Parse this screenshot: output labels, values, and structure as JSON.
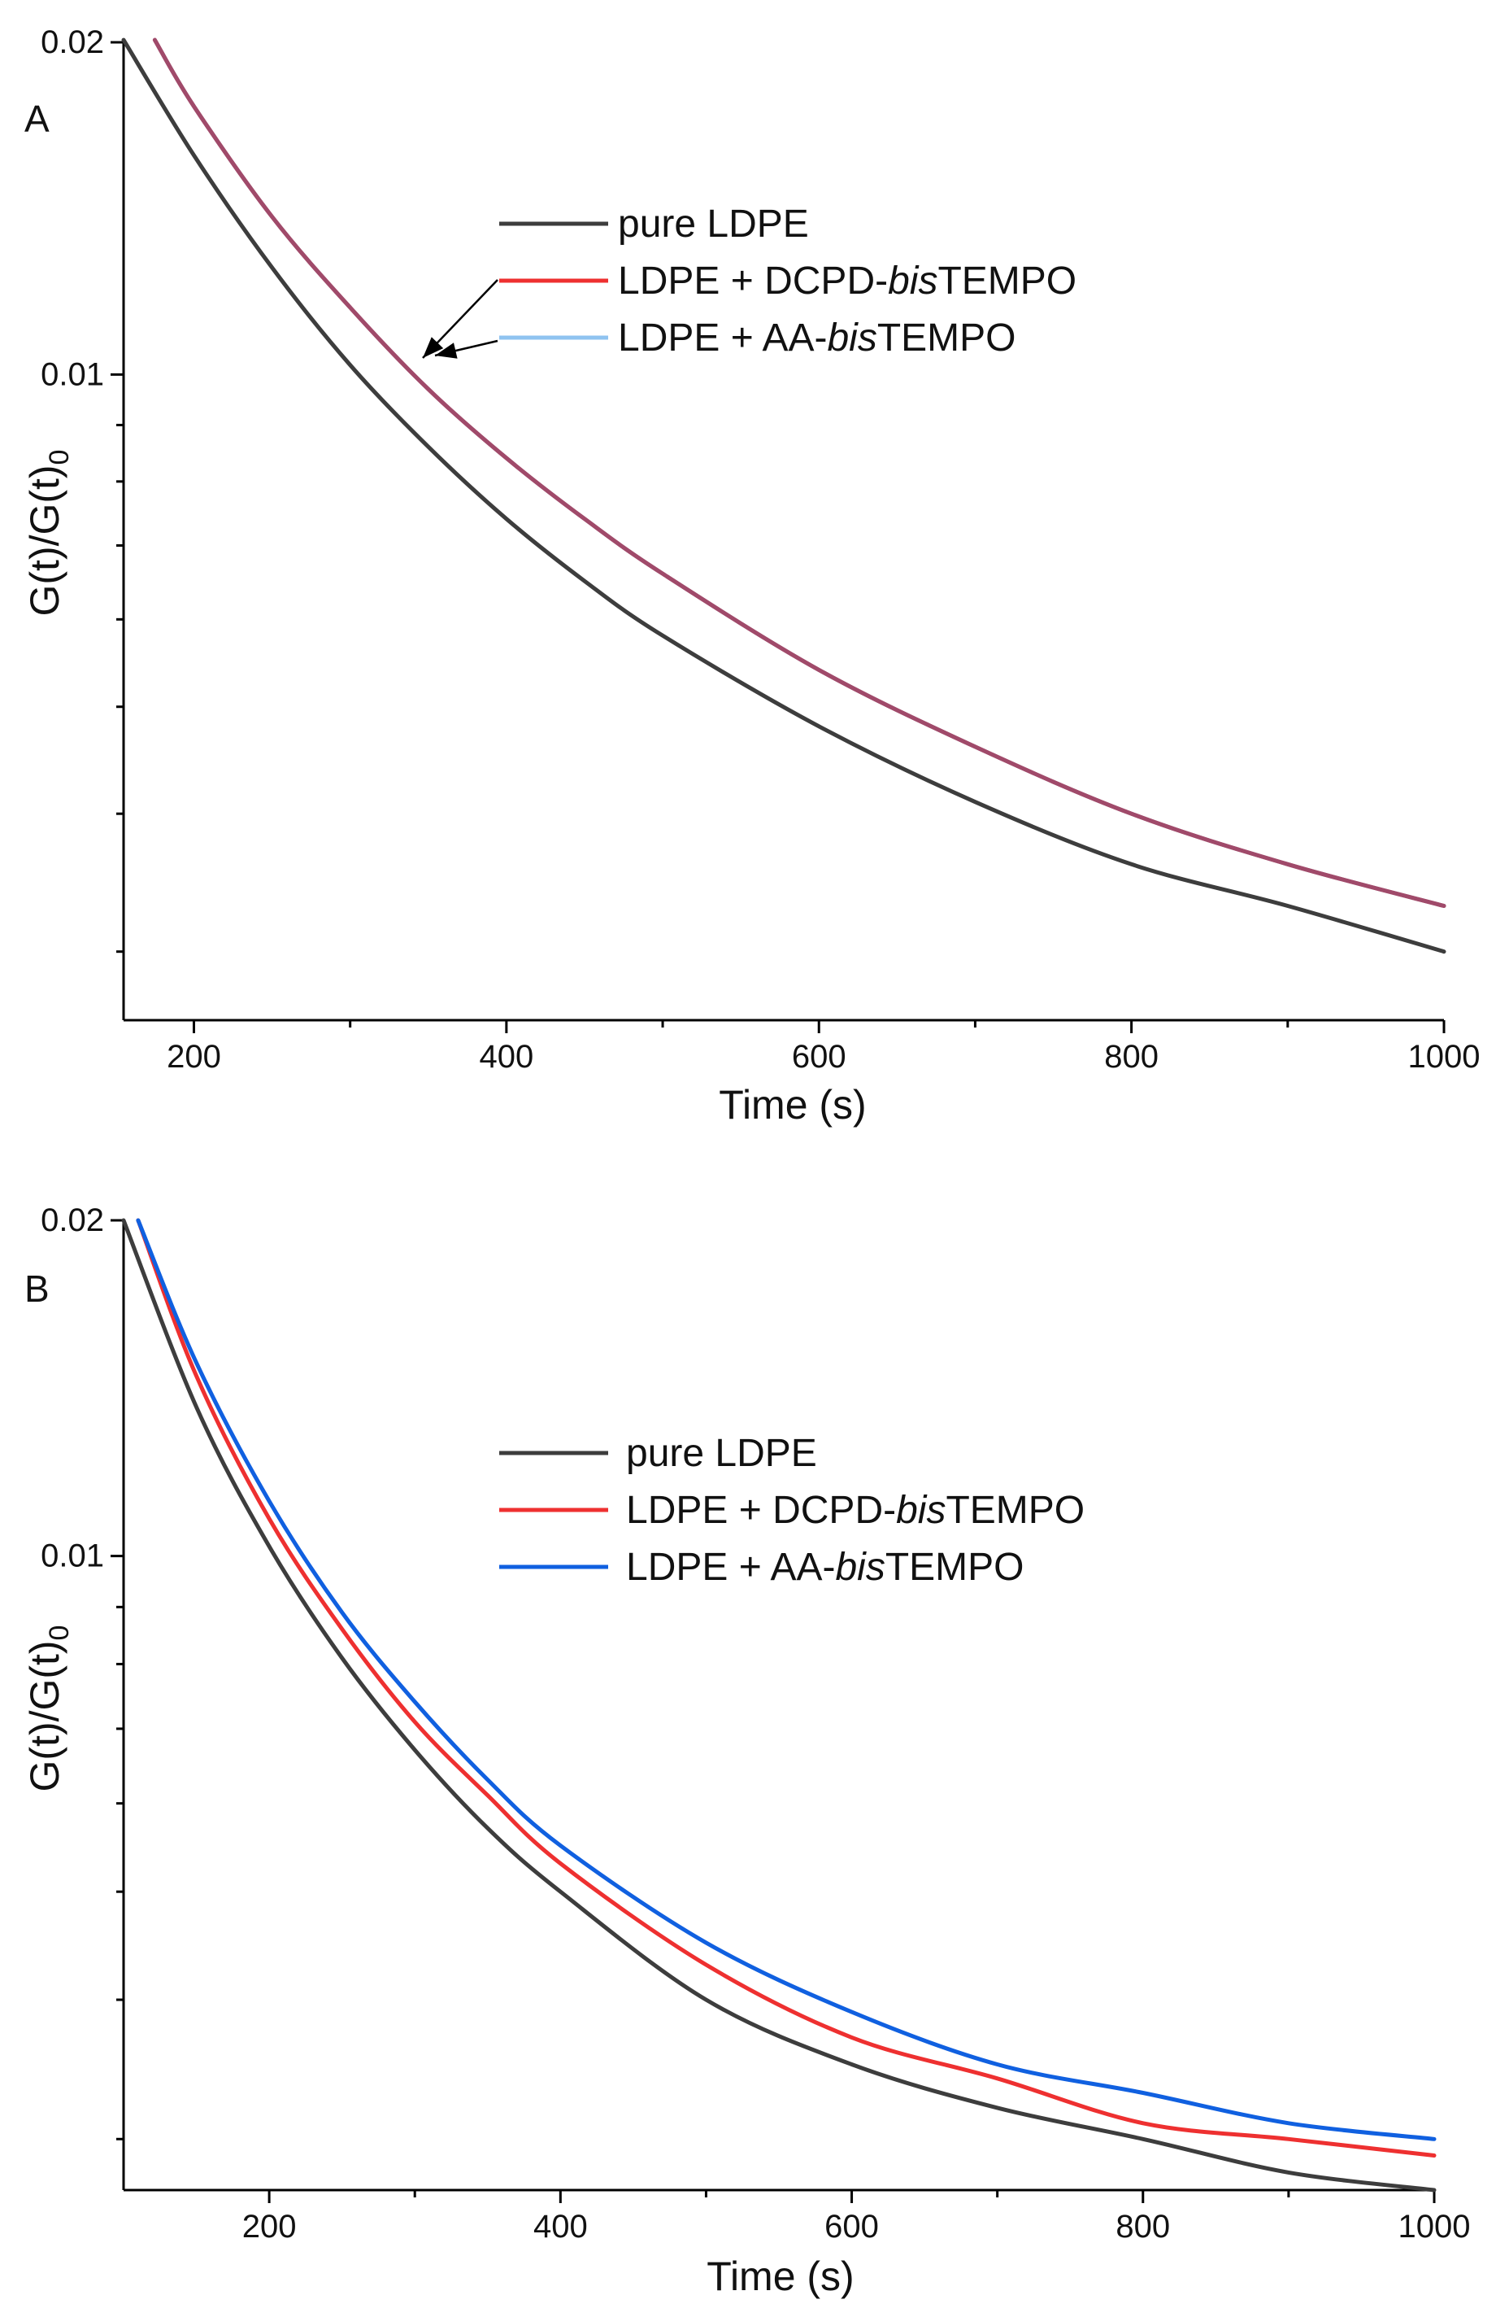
{
  "colors": {
    "pure_ldpe": "#3d3d3d",
    "dcpd": "#ee3030",
    "aa": "#1060e0",
    "aa_light": "#8fc3f0",
    "overlap": "#a04a6a"
  },
  "chart_data": [
    {
      "type": "line",
      "panel_label": "A",
      "xlabel": "Time (s)",
      "ylabel_main": "G(t)/G(t)",
      "ylabel_sub": "0",
      "xlim": [
        155,
        1000
      ],
      "ylim": [
        0.0026,
        0.02
      ],
      "y_scale": "log",
      "x_ticks": [
        200,
        400,
        600,
        800,
        1000
      ],
      "x_tick_labels": [
        "200",
        "400",
        "600",
        "800",
        "1000"
      ],
      "x_minor_ticks": [
        300,
        500,
        700,
        900
      ],
      "y_ticks": [
        0.01,
        0.02
      ],
      "y_tick_labels": [
        "0.01",
        "0.02"
      ],
      "y_minor_ticks": [
        0.003,
        0.004,
        0.005,
        0.006,
        0.007,
        0.008,
        0.009
      ],
      "legend_position": "upper-middle",
      "legend": [
        {
          "label": "pure LDPE",
          "color": "#3d3d3d"
        },
        {
          "label_prefix": "LDPE + DCPD-",
          "label_italic": "bis",
          "label_suffix": "TEMPO",
          "color": "#ee3030"
        },
        {
          "label_prefix": "LDPE + AA-",
          "label_italic": "bis",
          "label_suffix": "TEMPO",
          "color": "#8fc3f0"
        }
      ],
      "annotation": "arrows point from DCPD-bisTEMPO and AA-bisTEMPO legend entries to the overlapping curves",
      "series": [
        {
          "name": "pure LDPE",
          "color": "#3d3d3d",
          "x": [
            155,
            200,
            250,
            300,
            350,
            400,
            450,
            500,
            600,
            700,
            800,
            900,
            1000
          ],
          "y": [
            0.0201,
            0.0158,
            0.0125,
            0.0102,
            0.0086,
            0.0074,
            0.0065,
            0.0058,
            0.0048,
            0.0041,
            0.0036,
            0.0033,
            0.003
          ]
        },
        {
          "name": "LDPE + DCPD-bisTEMPO",
          "color": "#a04a6a",
          "x": [
            175,
            200,
            250,
            300,
            350,
            400,
            450,
            500,
            600,
            700,
            800,
            900,
            1000
          ],
          "y": [
            0.0201,
            0.0175,
            0.0139,
            0.0115,
            0.0097,
            0.0084,
            0.0074,
            0.0066,
            0.0054,
            0.0046,
            0.004,
            0.0036,
            0.0033
          ]
        },
        {
          "name": "LDPE + AA-bisTEMPO",
          "color": "#a04a6a",
          "x": [
            175,
            200,
            250,
            300,
            350,
            400,
            450,
            500,
            600,
            700,
            800,
            900,
            1000
          ],
          "y": [
            0.0201,
            0.0175,
            0.0139,
            0.0115,
            0.0097,
            0.0084,
            0.0074,
            0.0066,
            0.0054,
            0.0046,
            0.004,
            0.0036,
            0.0033
          ]
        }
      ]
    },
    {
      "type": "line",
      "panel_label": "B",
      "xlabel": "Time (s)",
      "ylabel_main": "G(t)/G(t)",
      "ylabel_sub": "0",
      "xlim": [
        100,
        1000
      ],
      "ylim": [
        0.0027,
        0.02
      ],
      "y_scale": "log",
      "x_ticks": [
        200,
        400,
        600,
        800,
        1000
      ],
      "x_tick_labels": [
        "200",
        "400",
        "600",
        "800",
        "1000"
      ],
      "x_minor_ticks": [
        300,
        500,
        700,
        900
      ],
      "y_ticks": [
        0.01,
        0.02
      ],
      "y_tick_labels": [
        "0.01",
        "0.02"
      ],
      "y_minor_ticks": [
        0.003,
        0.004,
        0.005,
        0.006,
        0.007,
        0.008,
        0.009
      ],
      "legend_position": "center",
      "legend": [
        {
          "label": "pure LDPE",
          "color": "#3d3d3d"
        },
        {
          "label_prefix": "LDPE + DCPD-",
          "label_italic": "bis",
          "label_suffix": "TEMPO",
          "color": "#ee3030"
        },
        {
          "label_prefix": "LDPE + AA-",
          "label_italic": "bis",
          "label_suffix": "TEMPO",
          "color": "#1060e0"
        }
      ],
      "series": [
        {
          "name": "pure LDPE",
          "color": "#3d3d3d",
          "x": [
            100,
            150,
            200,
            250,
            300,
            350,
            400,
            500,
            600,
            700,
            800,
            900,
            1000
          ],
          "y": [
            0.02,
            0.0136,
            0.0102,
            0.0081,
            0.0067,
            0.0057,
            0.005,
            0.004,
            0.0035,
            0.0032,
            0.003,
            0.0028,
            0.0027
          ]
        },
        {
          "name": "LDPE + DCPD-bisTEMPO",
          "color": "#ee3030",
          "x": [
            110,
            150,
            200,
            250,
            300,
            350,
            400,
            500,
            600,
            700,
            800,
            900,
            1000
          ],
          "y": [
            0.02,
            0.0145,
            0.0108,
            0.0086,
            0.0071,
            0.0061,
            0.0053,
            0.0043,
            0.0037,
            0.0034,
            0.0031,
            0.003,
            0.0029
          ]
        },
        {
          "name": "LDPE + AA-bisTEMPO",
          "color": "#1060e0",
          "x": [
            110,
            150,
            200,
            250,
            300,
            350,
            400,
            500,
            600,
            700,
            800,
            900,
            1000
          ],
          "y": [
            0.02,
            0.0149,
            0.0112,
            0.0089,
            0.0074,
            0.0063,
            0.0055,
            0.0045,
            0.0039,
            0.0035,
            0.0033,
            0.0031,
            0.003
          ]
        }
      ]
    }
  ]
}
